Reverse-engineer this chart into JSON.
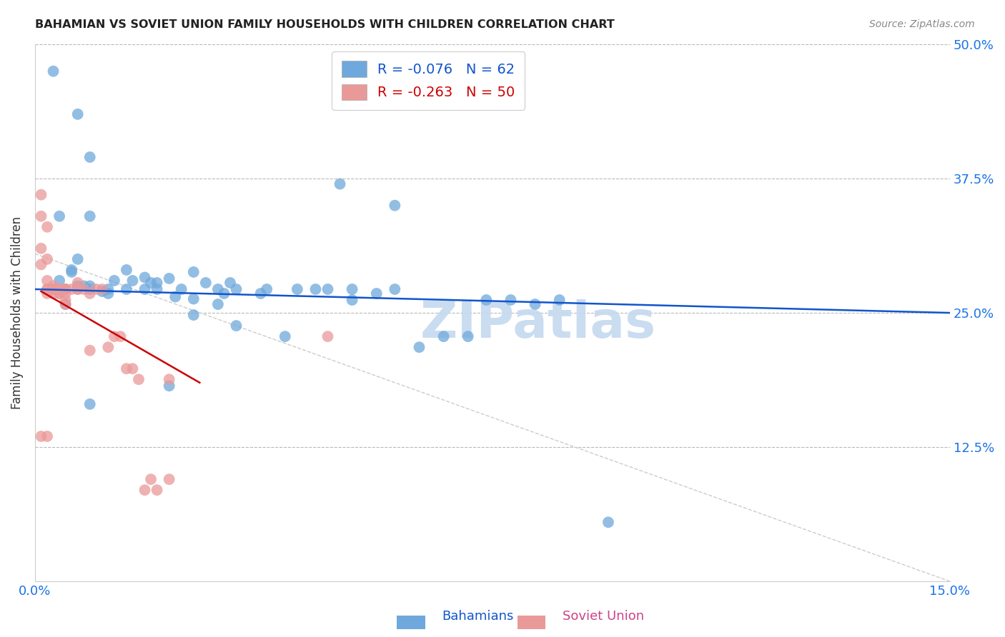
{
  "title": "BAHAMIAN VS SOVIET UNION FAMILY HOUSEHOLDS WITH CHILDREN CORRELATION CHART",
  "source": "Source: ZipAtlas.com",
  "ylabel": "Family Households with Children",
  "legend_blue_r": "R = -0.076",
  "legend_blue_n": "N = 62",
  "legend_pink_r": "R = -0.263",
  "legend_pink_n": "N = 50",
  "xlim": [
    0.0,
    0.15
  ],
  "ylim": [
    0.0,
    0.5
  ],
  "blue_color": "#6fa8dc",
  "pink_color": "#ea9999",
  "blue_line_color": "#1155cc",
  "pink_line_color": "#cc0000",
  "watermark_color": "#c5d9ef",
  "grid_color": "#b8b8b8",
  "blue_line_x0": 0.0,
  "blue_line_y0": 0.272,
  "blue_line_x1": 0.15,
  "blue_line_y1": 0.25,
  "pink_line_x0": 0.001,
  "pink_line_y0": 0.27,
  "pink_line_x1": 0.027,
  "pink_line_y1": 0.185,
  "gray_line_x0": 0.0,
  "gray_line_y0": 0.305,
  "gray_line_x1": 0.15,
  "gray_line_y1": 0.0,
  "blue_scatter_x": [
    0.003,
    0.007,
    0.009,
    0.004,
    0.007,
    0.009,
    0.004,
    0.006,
    0.007,
    0.008,
    0.009,
    0.011,
    0.012,
    0.013,
    0.015,
    0.016,
    0.018,
    0.019,
    0.02,
    0.02,
    0.022,
    0.023,
    0.024,
    0.026,
    0.026,
    0.028,
    0.03,
    0.031,
    0.032,
    0.033,
    0.037,
    0.038,
    0.041,
    0.043,
    0.046,
    0.048,
    0.05,
    0.052,
    0.056,
    0.059,
    0.063,
    0.067,
    0.071,
    0.074,
    0.078,
    0.082,
    0.003,
    0.005,
    0.006,
    0.009,
    0.012,
    0.015,
    0.018,
    0.022,
    0.026,
    0.03,
    0.033,
    0.052,
    0.086,
    0.094,
    0.009,
    0.059
  ],
  "blue_scatter_y": [
    0.475,
    0.435,
    0.395,
    0.34,
    0.3,
    0.34,
    0.28,
    0.29,
    0.275,
    0.275,
    0.275,
    0.27,
    0.268,
    0.28,
    0.29,
    0.28,
    0.283,
    0.278,
    0.272,
    0.278,
    0.282,
    0.265,
    0.272,
    0.263,
    0.288,
    0.278,
    0.272,
    0.268,
    0.278,
    0.272,
    0.268,
    0.272,
    0.228,
    0.272,
    0.272,
    0.272,
    0.37,
    0.262,
    0.268,
    0.35,
    0.218,
    0.228,
    0.228,
    0.262,
    0.262,
    0.258,
    0.272,
    0.258,
    0.288,
    0.272,
    0.272,
    0.272,
    0.272,
    0.182,
    0.248,
    0.258,
    0.238,
    0.272,
    0.262,
    0.055,
    0.165,
    0.272
  ],
  "pink_scatter_x": [
    0.001,
    0.001,
    0.001,
    0.001,
    0.002,
    0.002,
    0.002,
    0.002,
    0.002,
    0.002,
    0.003,
    0.003,
    0.003,
    0.003,
    0.003,
    0.003,
    0.004,
    0.004,
    0.004,
    0.004,
    0.005,
    0.005,
    0.005,
    0.005,
    0.005,
    0.005,
    0.005,
    0.006,
    0.007,
    0.007,
    0.007,
    0.008,
    0.009,
    0.009,
    0.01,
    0.011,
    0.012,
    0.013,
    0.014,
    0.015,
    0.016,
    0.017,
    0.018,
    0.019,
    0.02,
    0.022,
    0.022,
    0.001,
    0.002,
    0.048
  ],
  "pink_scatter_y": [
    0.36,
    0.34,
    0.31,
    0.295,
    0.33,
    0.3,
    0.28,
    0.272,
    0.272,
    0.268,
    0.275,
    0.272,
    0.272,
    0.272,
    0.272,
    0.268,
    0.272,
    0.272,
    0.268,
    0.268,
    0.272,
    0.272,
    0.272,
    0.272,
    0.268,
    0.262,
    0.258,
    0.272,
    0.272,
    0.278,
    0.272,
    0.272,
    0.268,
    0.215,
    0.272,
    0.272,
    0.218,
    0.228,
    0.228,
    0.198,
    0.198,
    0.188,
    0.085,
    0.095,
    0.085,
    0.095,
    0.188,
    0.135,
    0.135,
    0.228
  ]
}
